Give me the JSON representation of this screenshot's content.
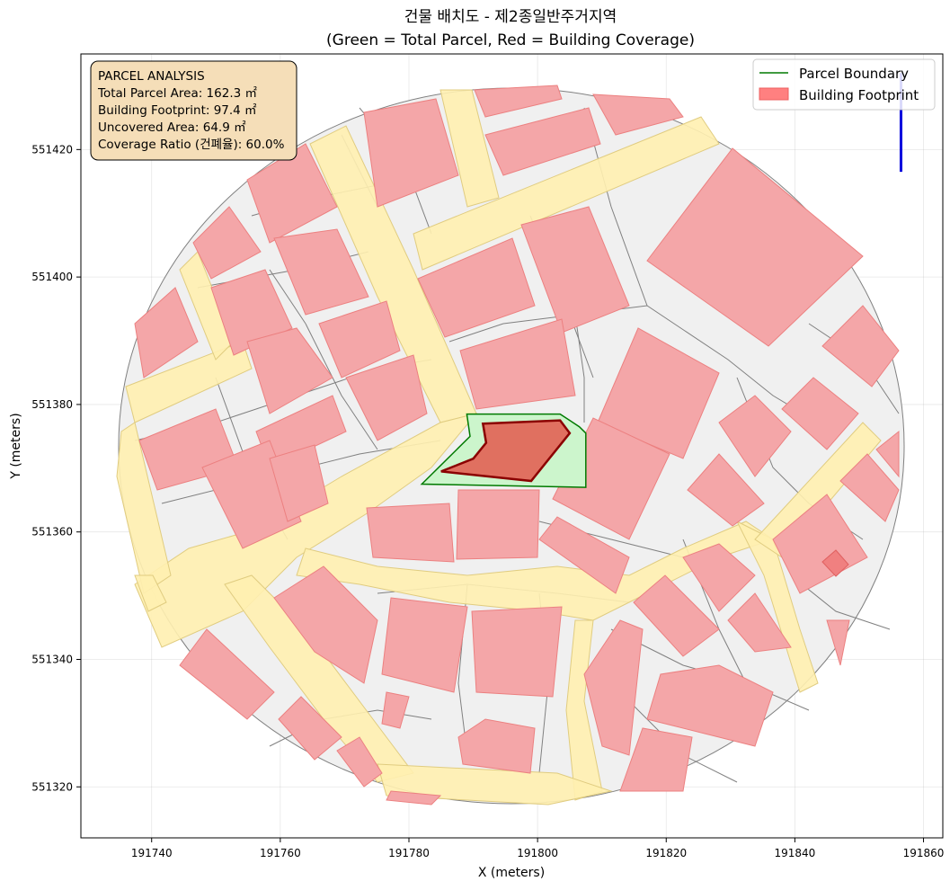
{
  "chart_data": {
    "type": "map",
    "title_line1": "건물 배치도 - 제2종일반주거지역",
    "title_line2": "(Green = Total Parcel, Red = Building Coverage)",
    "xlabel": "X (meters)",
    "ylabel": "Y (meters)",
    "xlim": [
      191729,
      191863
    ],
    "ylim": [
      551312,
      551435
    ],
    "xticks": [
      191740,
      191760,
      191780,
      191800,
      191820,
      191840,
      191860
    ],
    "yticks": [
      551320,
      551340,
      551360,
      551380,
      551400,
      551420
    ],
    "grid": true,
    "legend": {
      "placement": "top-right",
      "entries": [
        {
          "label": "Parcel Boundary",
          "kind": "line",
          "color": "#007a00"
        },
        {
          "label": "Building Footprint",
          "kind": "patch",
          "color": "#ff8080"
        }
      ]
    },
    "annotation": {
      "heading": "PARCEL ANALYSIS",
      "lines": [
        "Total Parcel Area: 162.3 ㎡",
        "Building Footprint: 97.4 ㎡",
        "Uncovered Area: 64.9 ㎡",
        "Coverage Ratio (건폐율): 60.0%"
      ]
    },
    "colors": {
      "parcel_fill": "#ccf5cc",
      "parcel_edge": "#007a00",
      "target_building_fill": "#e07060",
      "target_building_edge": "#8b0000",
      "building_fill": "#f4a6a8",
      "building_edge": "#ec8080",
      "lot_fill": "#f0f0f0",
      "lot_edge": "#808080",
      "road_fill": "#fff0b0",
      "road_edge": "#e0cc80",
      "north_arrow": "#0000dd",
      "annotation_bg": "#f5deb8"
    },
    "target_parcel": [
      [
        191789,
        551378.5
      ],
      [
        191803.5,
        551378.5
      ],
      [
        191806.5,
        551376.5
      ],
      [
        191807.5,
        551375.5
      ],
      [
        191807.5,
        551367
      ],
      [
        191782,
        551367.5
      ],
      [
        191789.5,
        551375
      ],
      [
        191789,
        551378.5
      ]
    ],
    "target_building": [
      [
        191791.5,
        551377
      ],
      [
        191803.5,
        551377.5
      ],
      [
        191805,
        551375.5
      ],
      [
        191799,
        551368
      ],
      [
        191785,
        551369.5
      ],
      [
        191790,
        551371.5
      ],
      [
        191792,
        551374
      ],
      [
        191791.5,
        551377
      ]
    ],
    "north_arrow": {
      "x": 191856.5,
      "y_from": 551416.5,
      "y_to": 551432
    }
  }
}
